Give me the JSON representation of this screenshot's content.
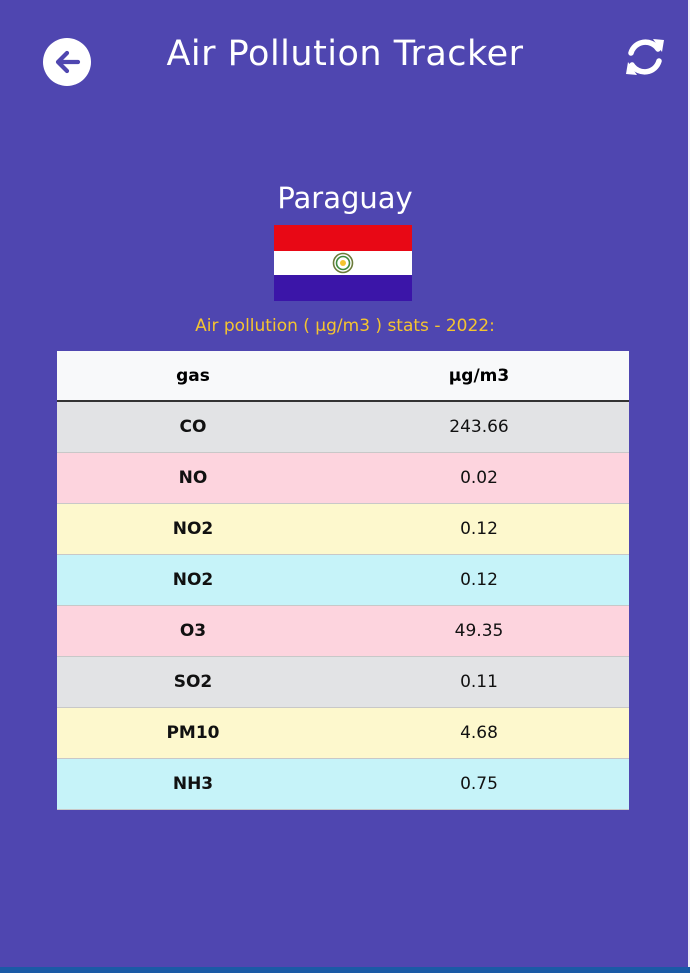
{
  "header": {
    "title": "Air Pollution Tracker",
    "back_icon": "arrow-left-circle-icon",
    "refresh_icon": "refresh-icon"
  },
  "country": {
    "name": "Paraguay",
    "flag_colors": [
      "#e80815",
      "#ffffff",
      "#3b15a8"
    ]
  },
  "stats": {
    "caption": "Air pollution ( µg/m3 ) stats - 2022:",
    "columns": [
      "gas",
      "µg/m3"
    ],
    "rows": [
      {
        "gas": "CO",
        "value": "243.66",
        "style": "grey"
      },
      {
        "gas": "NO",
        "value": "0.02",
        "style": "pink"
      },
      {
        "gas": "NO2",
        "value": "0.12",
        "style": "yellow"
      },
      {
        "gas": "NO2",
        "value": "0.12",
        "style": "cyan"
      },
      {
        "gas": "O3",
        "value": "49.35",
        "style": "pink"
      },
      {
        "gas": "SO2",
        "value": "0.11",
        "style": "grey"
      },
      {
        "gas": "PM10",
        "value": "4.68",
        "style": "yellow"
      },
      {
        "gas": "NH3",
        "value": "0.75",
        "style": "cyan"
      }
    ]
  },
  "colors": {
    "background": "#4f46b0",
    "caption": "#f4c430"
  }
}
